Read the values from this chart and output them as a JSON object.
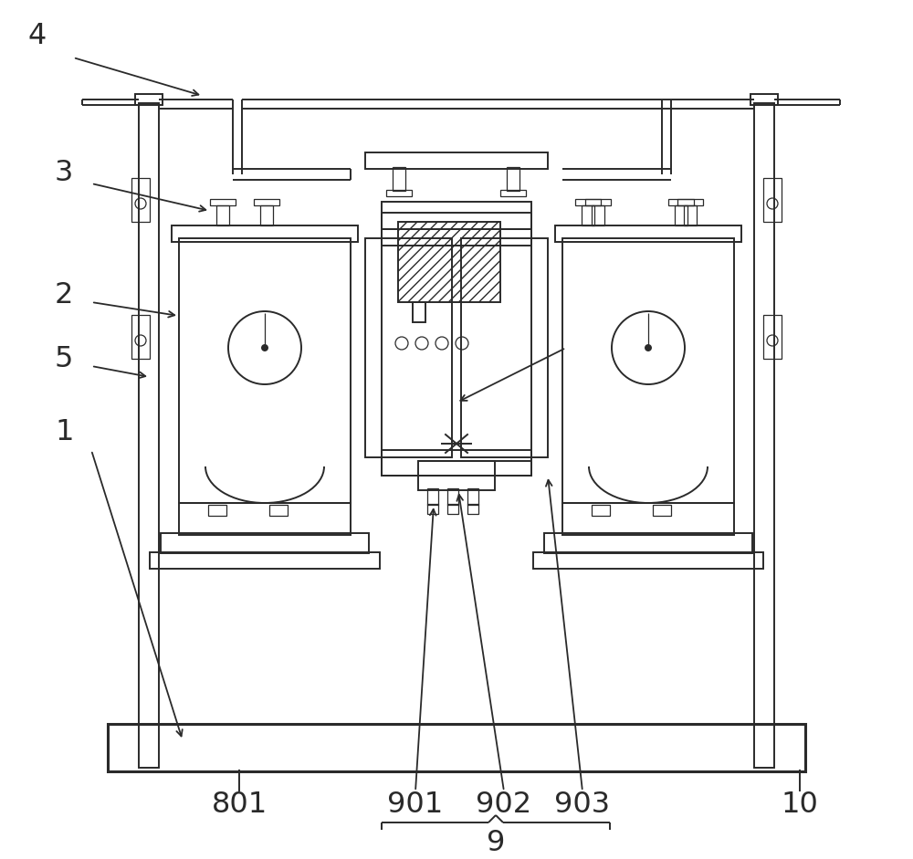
{
  "bg_color": "#ffffff",
  "lc": "#2a2a2a",
  "lw": 1.4,
  "lw_thin": 0.9,
  "lw_thick": 2.2,
  "fig_width": 10.0,
  "fig_height": 9.41
}
